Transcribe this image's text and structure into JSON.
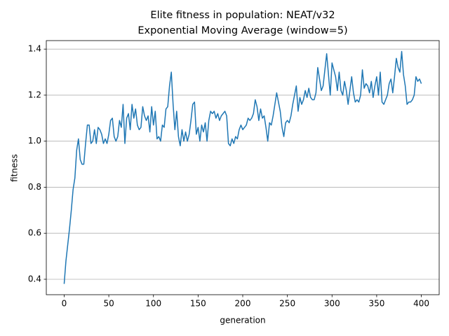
{
  "chart_data": {
    "type": "line",
    "title": "Elite fitness in population: NEAT/v32",
    "subtitle": "Exponential Moving Average (window=5)",
    "x_label": "generation",
    "y_label": "fitness",
    "grid": "y",
    "xlim": [
      -20,
      420
    ],
    "ylim": [
      0.333,
      1.437
    ],
    "xticks": [
      0,
      50,
      100,
      150,
      200,
      250,
      300,
      350,
      400
    ],
    "yticks": [
      0.4,
      0.6,
      0.8,
      {
        "value": 1,
        "label": "1.0"
      },
      1.2,
      1.4
    ],
    "x": [
      0,
      2,
      4,
      6,
      8,
      10,
      12,
      14,
      16,
      18,
      20,
      22,
      24,
      26,
      28,
      30,
      32,
      34,
      36,
      38,
      40,
      42,
      44,
      46,
      48,
      50,
      52,
      54,
      56,
      58,
      60,
      62,
      64,
      66,
      68,
      70,
      72,
      74,
      76,
      78,
      80,
      82,
      84,
      86,
      88,
      90,
      92,
      94,
      96,
      98,
      100,
      102,
      104,
      106,
      108,
      110,
      112,
      114,
      116,
      118,
      120,
      122,
      124,
      126,
      128,
      130,
      132,
      134,
      136,
      138,
      140,
      142,
      144,
      146,
      148,
      150,
      152,
      154,
      156,
      158,
      160,
      162,
      164,
      166,
      168,
      170,
      172,
      174,
      176,
      178,
      180,
      182,
      184,
      186,
      188,
      190,
      192,
      194,
      196,
      198,
      200,
      202,
      204,
      206,
      208,
      210,
      212,
      214,
      216,
      218,
      220,
      222,
      224,
      226,
      228,
      230,
      232,
      234,
      236,
      238,
      240,
      242,
      244,
      246,
      248,
      250,
      252,
      254,
      256,
      258,
      260,
      262,
      264,
      266,
      268,
      270,
      272,
      274,
      276,
      278,
      280,
      282,
      284,
      286,
      288,
      290,
      292,
      294,
      296,
      298,
      300,
      302,
      304,
      306,
      308,
      310,
      312,
      314,
      316,
      318,
      320,
      322,
      324,
      326,
      328,
      330,
      332,
      334,
      336,
      338,
      340,
      342,
      344,
      346,
      348,
      350,
      352,
      354,
      356,
      358,
      360,
      362,
      364,
      366,
      368,
      370,
      372,
      374,
      376,
      378,
      380,
      382,
      384,
      386,
      388,
      390,
      392,
      394,
      396,
      398,
      400
    ],
    "series": [
      {
        "color": "#1f77b4",
        "values": [
          0.38,
          0.48,
          0.55,
          0.62,
          0.7,
          0.79,
          0.84,
          0.96,
          1.01,
          0.92,
          0.9,
          0.9,
          0.99,
          1.07,
          1.07,
          0.99,
          1.0,
          1.05,
          0.99,
          1.06,
          1.05,
          1.03,
          0.99,
          1.01,
          0.99,
          1.03,
          1.09,
          1.1,
          1.02,
          1.0,
          1.02,
          1.09,
          1.06,
          1.16,
          0.99,
          1.1,
          1.12,
          1.05,
          1.16,
          1.1,
          1.14,
          1.07,
          1.05,
          1.06,
          1.15,
          1.11,
          1.09,
          1.11,
          1.04,
          1.15,
          1.07,
          1.13,
          1.01,
          1.02,
          1.0,
          1.07,
          1.06,
          1.14,
          1.15,
          1.24,
          1.3,
          1.16,
          1.05,
          1.13,
          1.02,
          0.98,
          1.05,
          1.0,
          1.04,
          1.0,
          1.03,
          1.09,
          1.16,
          1.17,
          1.03,
          1.06,
          1.0,
          1.07,
          1.04,
          1.08,
          1.0,
          1.09,
          1.13,
          1.12,
          1.13,
          1.1,
          1.12,
          1.09,
          1.11,
          1.12,
          1.13,
          1.11,
          0.99,
          0.98,
          1.01,
          0.99,
          1.02,
          1.01,
          1.05,
          1.07,
          1.05,
          1.06,
          1.07,
          1.1,
          1.09,
          1.1,
          1.12,
          1.18,
          1.15,
          1.09,
          1.14,
          1.1,
          1.11,
          1.06,
          1.0,
          1.08,
          1.07,
          1.11,
          1.16,
          1.21,
          1.17,
          1.13,
          1.06,
          1.02,
          1.08,
          1.09,
          1.08,
          1.11,
          1.16,
          1.2,
          1.24,
          1.13,
          1.19,
          1.16,
          1.18,
          1.22,
          1.19,
          1.23,
          1.19,
          1.18,
          1.18,
          1.21,
          1.32,
          1.27,
          1.22,
          1.24,
          1.31,
          1.38,
          1.29,
          1.2,
          1.34,
          1.31,
          1.28,
          1.22,
          1.3,
          1.22,
          1.2,
          1.26,
          1.22,
          1.16,
          1.22,
          1.28,
          1.21,
          1.17,
          1.18,
          1.17,
          1.2,
          1.31,
          1.23,
          1.25,
          1.24,
          1.21,
          1.26,
          1.19,
          1.24,
          1.28,
          1.2,
          1.3,
          1.17,
          1.16,
          1.18,
          1.2,
          1.25,
          1.27,
          1.21,
          1.28,
          1.36,
          1.32,
          1.3,
          1.39,
          1.29,
          1.24,
          1.16,
          1.17,
          1.17,
          1.18,
          1.2,
          1.28,
          1.26,
          1.27,
          1.25
        ]
      }
    ]
  }
}
